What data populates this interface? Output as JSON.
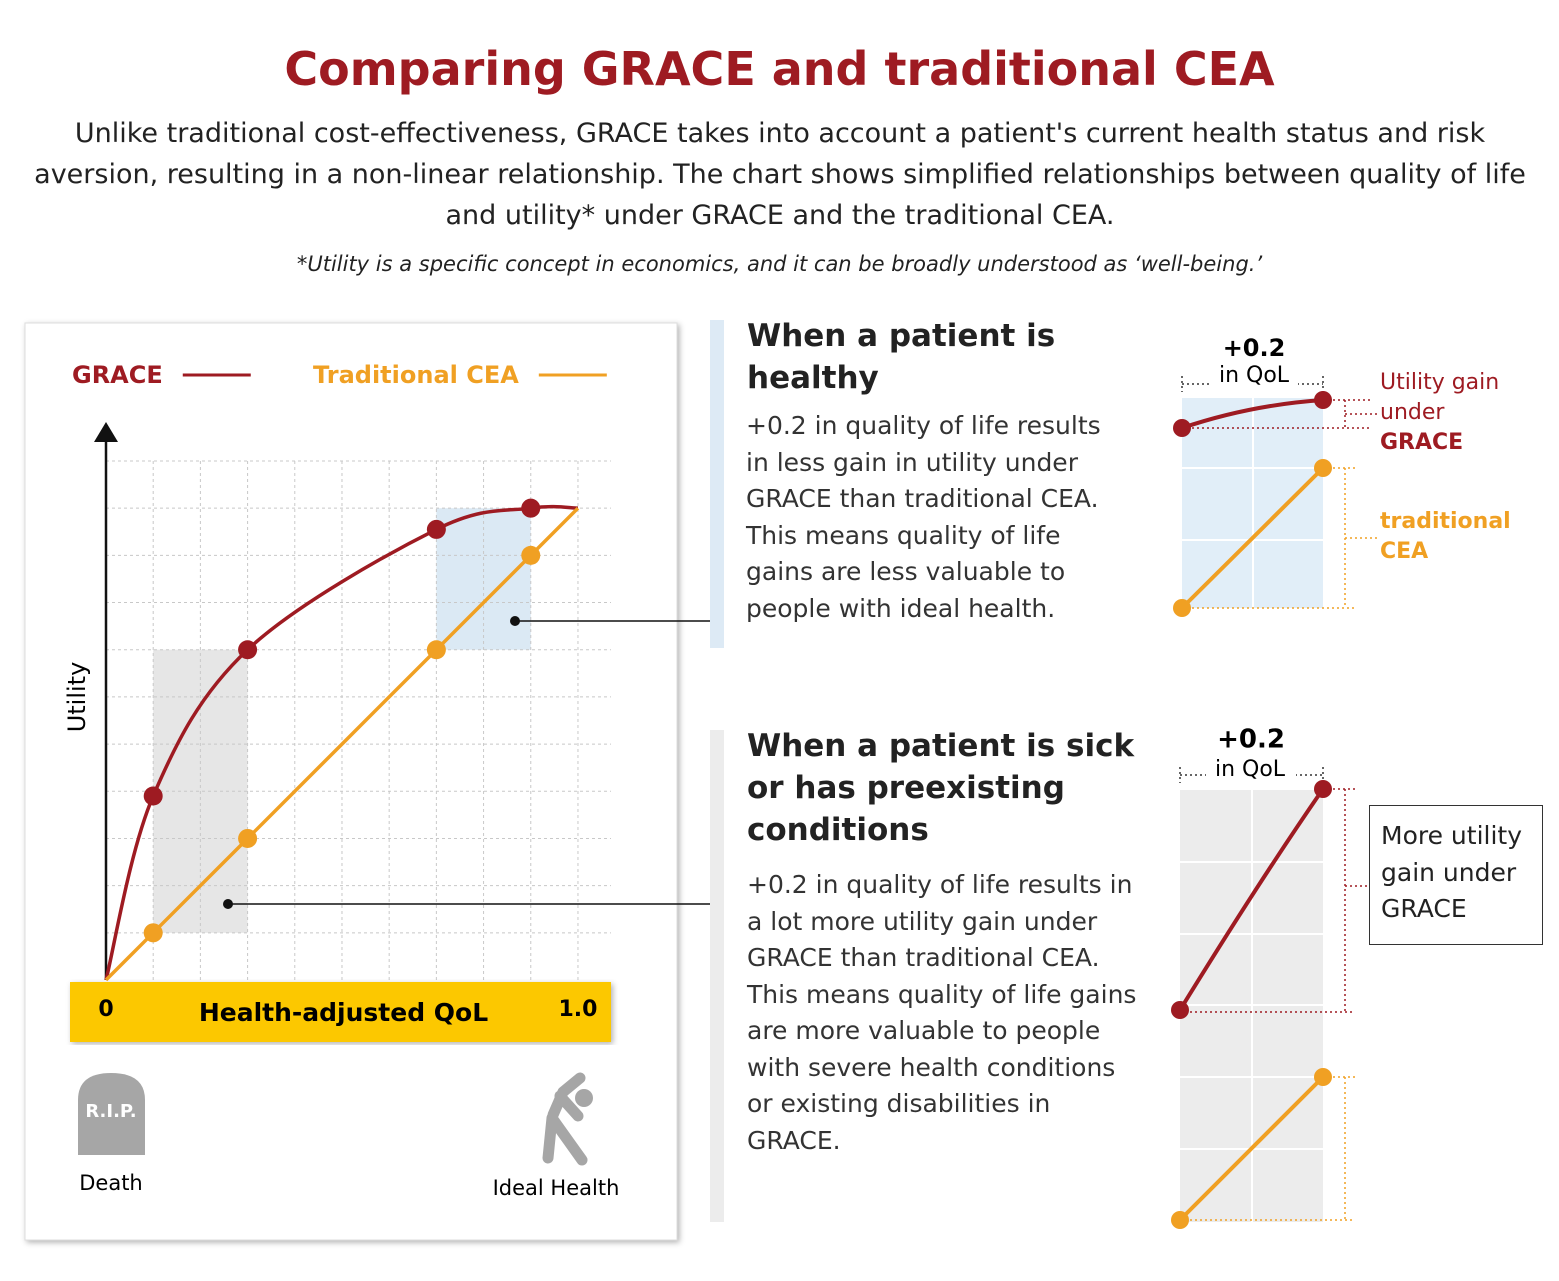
{
  "header": {
    "title": "Comparing GRACE and traditional CEA",
    "subtitle": "Unlike traditional cost-effectiveness, GRACE takes into account a patient's current health status and risk aversion, resulting in a non-linear relationship. The chart shows simplified relationships between quality of life and utility* under GRACE and the traditional CEA.",
    "footnote": "*Utility is a specific concept in economics, and it can be broadly understood as ‘well-being.’"
  },
  "chart_data": {
    "type": "line",
    "xlabel": "Health-adjusted QoL",
    "ylabel": "Utility",
    "xlim": [
      0,
      1.07
    ],
    "ylim": [
      0,
      1.1
    ],
    "xticks": [
      0,
      {
        "value": 1,
        "label": "1.0"
      }
    ],
    "xgrid": [
      0.1,
      0.2,
      0.3,
      0.4,
      0.5,
      0.6,
      0.7,
      0.8,
      0.9,
      1.0
    ],
    "ygrid": [
      0.1,
      0.2,
      0.3,
      0.4,
      0.5,
      0.6,
      0.7,
      0.8,
      0.9,
      1.0,
      1.1
    ],
    "legend": "top",
    "series": [
      {
        "name": "GRACE",
        "color": "#9e1b22",
        "x": [
          0,
          0.1,
          0.3,
          0.7,
          0.9,
          1.0
        ],
        "values": [
          0,
          0.39,
          0.7,
          0.955,
          1.0,
          1.0
        ]
      },
      {
        "name": "Traditional CEA",
        "color": "#f0a023",
        "x": [
          0,
          0.1,
          0.3,
          0.7,
          0.9,
          1.0
        ],
        "values": [
          0,
          0.1,
          0.3,
          0.7,
          0.9,
          1.0
        ]
      }
    ],
    "highlights": [
      {
        "x": [
          0.7,
          0.9
        ],
        "y": [
          0.7,
          1.0
        ],
        "color": "#dbe9f4"
      },
      {
        "x": [
          0.1,
          0.3
        ],
        "y": [
          0.1,
          0.7
        ],
        "color": "#e6e6e6"
      }
    ]
  },
  "icons": {
    "tombstone": "R.I.P.",
    "left_label": "Death",
    "right_label": "Ideal Health"
  },
  "panels": [
    {
      "heading": "When a patient is healthy",
      "body": "+0.2 in quality of life  results in less gain in utility under GRACE than traditional CEA. This means quality of life gains are less valuable to people with ideal health.",
      "qol_change": "+0.2",
      "qol_unit": "in QoL",
      "grace_note": "Utility gain under",
      "grace_name": "GRACE",
      "cea_note": "traditional CEA"
    },
    {
      "heading": "When a patient is sick or has preexisting conditions",
      "body": "+0.2 in quality of life results in a lot more utility gain under GRACE than traditional CEA. This means quality of life gains are more valuable to people with severe health conditions or existing disabilities in GRACE.",
      "qol_change": "+0.2",
      "qol_unit": "in QoL",
      "note": "More utility gain under GRACE"
    }
  ]
}
